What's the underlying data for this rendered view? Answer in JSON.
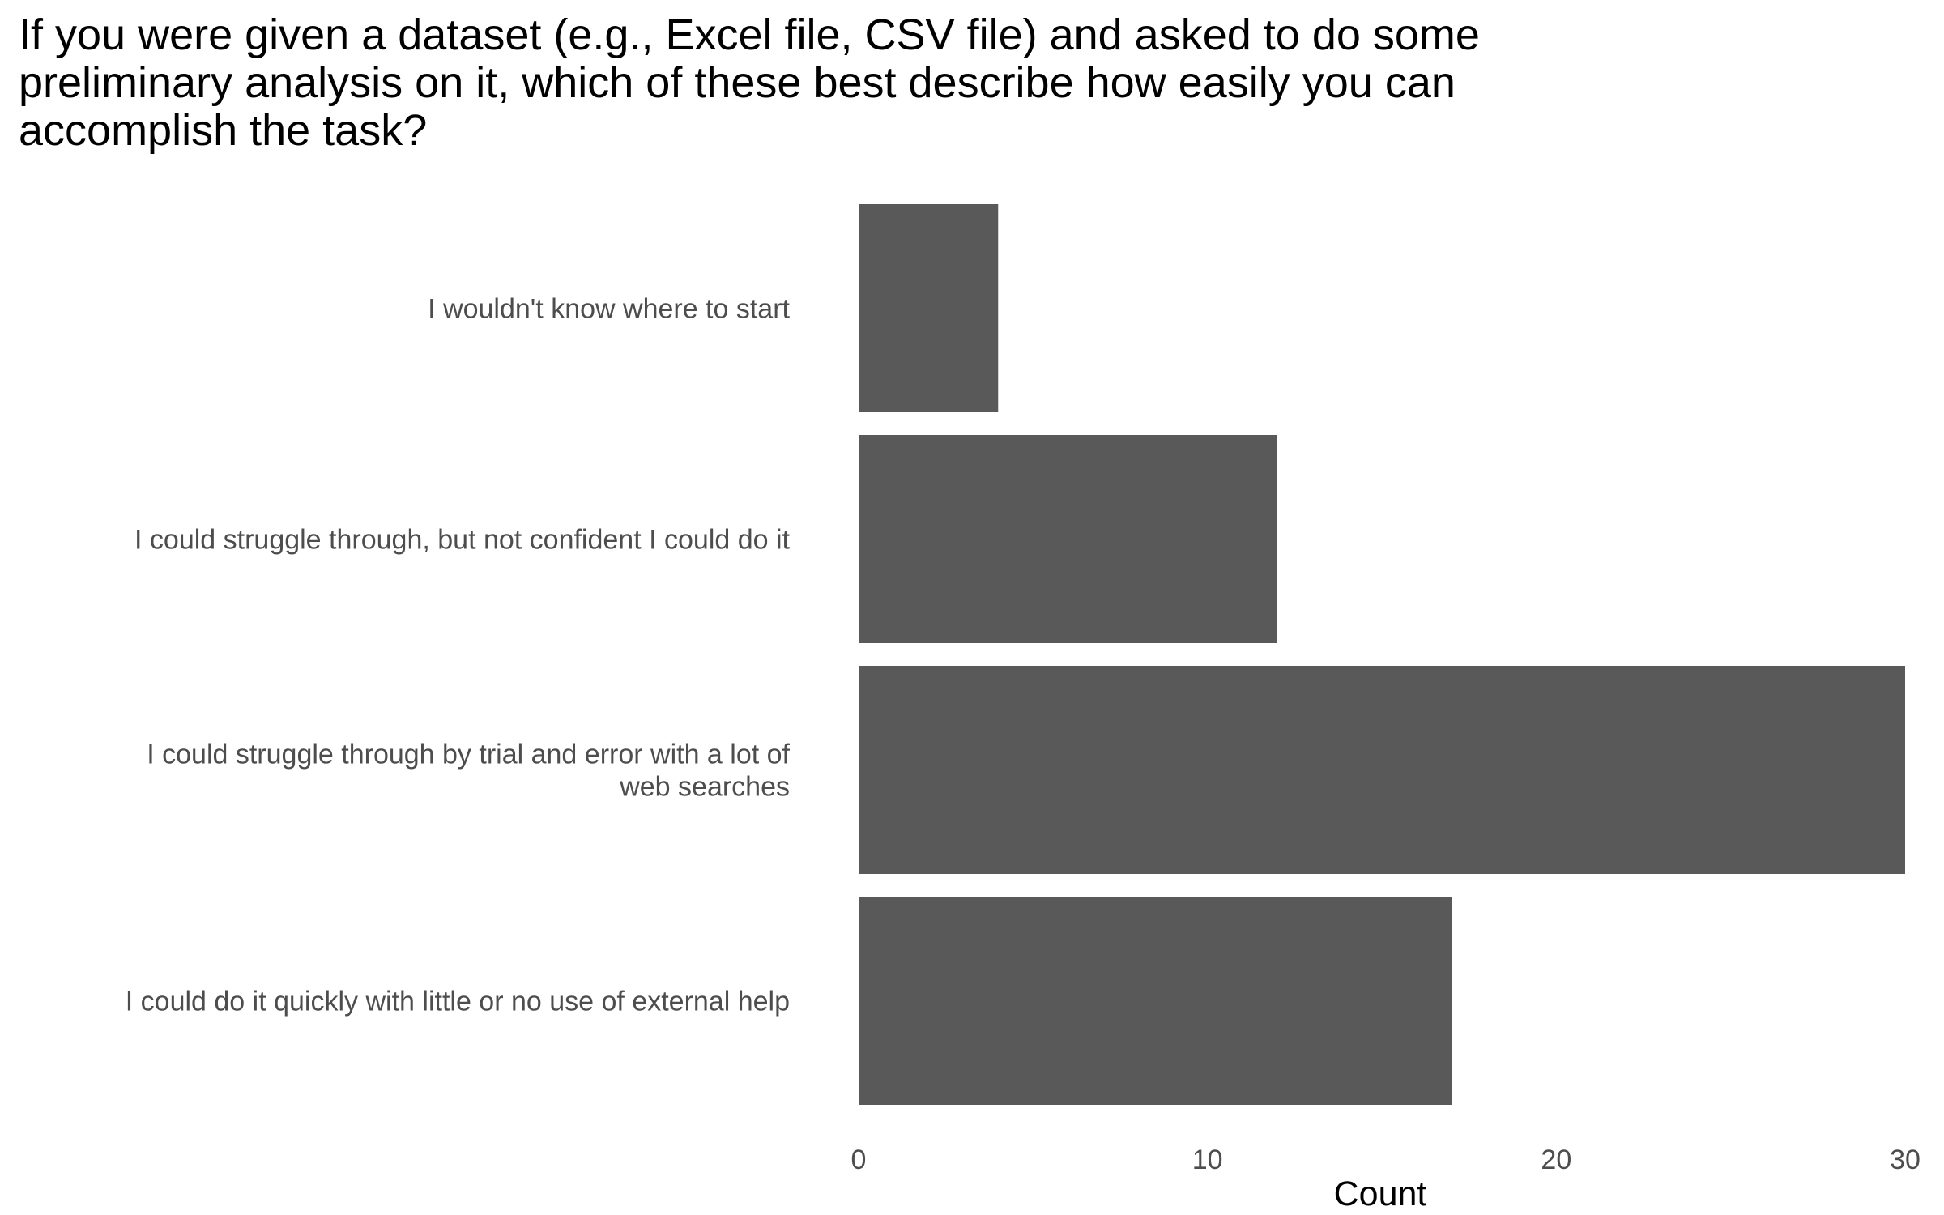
{
  "chart_data": {
    "type": "bar",
    "orientation": "horizontal",
    "title": "If you were given a dataset (e.g., Excel file, CSV file) and asked to do some\npreliminary analysis on it, which of these best describe how easily you can\naccomplish the task?",
    "xlabel": "Count",
    "ylabel": "",
    "categories": [
      "I wouldn't know where to start",
      "I could struggle through, but not confident I could do it",
      "I could struggle through by trial and error with a lot of\nweb searches",
      "I could do it quickly with little or no use of external help"
    ],
    "values": [
      4,
      12,
      30,
      17
    ],
    "xlim": [
      0,
      30
    ],
    "xticks": [
      0,
      10,
      20,
      30
    ],
    "bar_color": "#595959",
    "grid": false,
    "legend": "none"
  }
}
